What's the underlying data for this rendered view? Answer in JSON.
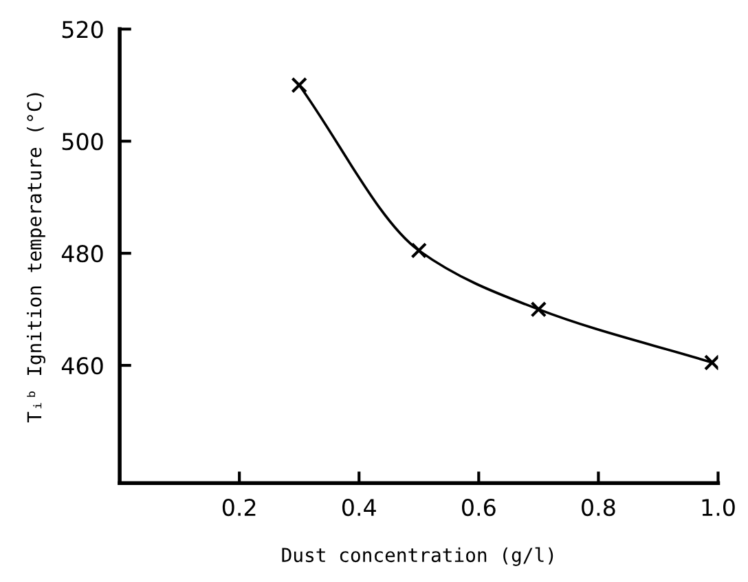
{
  "chart_data": {
    "type": "line",
    "xlabel": "Dust concentration (g/l)",
    "ylabel": "Tᵢᵇ Ignition temperature (°C)",
    "x": [
      0.3,
      0.5,
      0.7,
      0.99
    ],
    "series": [
      {
        "color": "#000000",
        "values": [
          510,
          480.5,
          470,
          460.5
        ]
      }
    ],
    "marker": "cross",
    "line_style": "solid",
    "grid": false,
    "xlim": [
      0,
      1.0
    ],
    "xticks": [
      0.2,
      0.4,
      0.6,
      0.8,
      {
        "value": 1,
        "label": "1.0"
      }
    ],
    "ylim": [
      439,
      520
    ],
    "yticks": [
      460,
      480,
      500,
      520
    ]
  }
}
